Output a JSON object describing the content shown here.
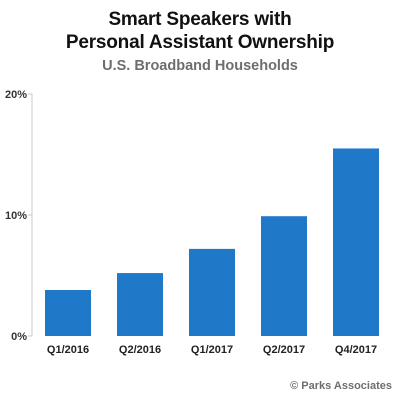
{
  "chart_data": {
    "type": "bar",
    "title": "Smart Speakers with Personal Assistant Ownership",
    "title_lines": [
      "Smart Speakers with",
      "Personal Assistant Ownership"
    ],
    "subtitle": "U.S. Broadband Households",
    "categories": [
      "Q1/2016",
      "Q2/2016",
      "Q1/2017",
      "Q2/2017",
      "Q4/2017"
    ],
    "values": [
      3.8,
      5.2,
      7.2,
      9.9,
      15.5
    ],
    "ylim": [
      0,
      20
    ],
    "yticks": [
      0,
      10,
      20
    ],
    "ytick_labels": [
      "0%",
      "10%",
      "20%"
    ],
    "xlabel": "",
    "ylabel": "",
    "grid": false,
    "bar_color": "#1f78c8"
  },
  "footer": "© Parks Associates"
}
